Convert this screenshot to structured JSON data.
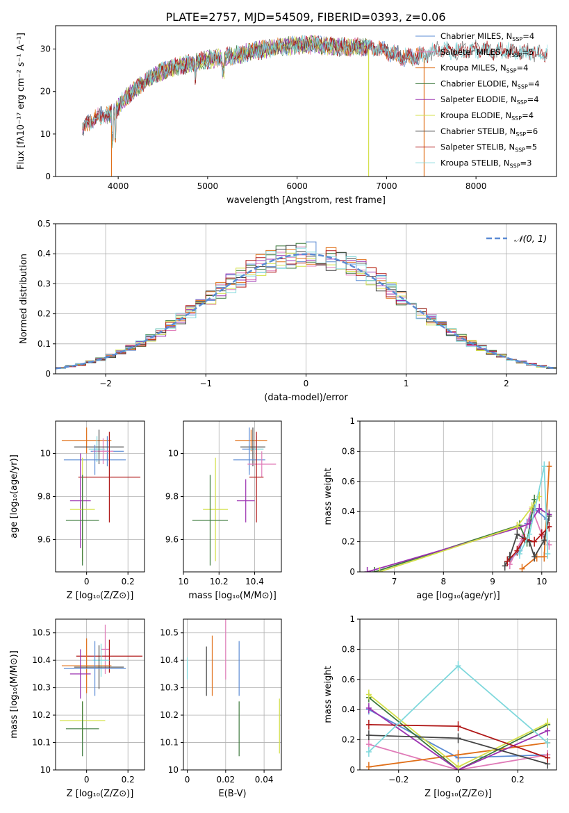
{
  "title": "PLATE=2757, MJD=54509, FIBERID=0393, z=0.06",
  "colors": {
    "chabrier_miles": "#5b8bd4",
    "salpeter_miles": "#e07bb8",
    "kroupa_miles": "#e0701a",
    "chabrier_elodie": "#3d7a3d",
    "salpeter_elodie": "#9b30b0",
    "kroupa_elodie": "#d4e04a",
    "chabrier_stelib": "#444444",
    "salpeter_stelib": "#b01818",
    "kroupa_stelib": "#7fd8dc"
  },
  "chart_data": [
    {
      "type": "line",
      "panel": "spectrum",
      "xlabel": "wavelength [Angstrom, rest frame]",
      "ylabel": "Flux [fλ10⁻¹⁷ erg cm⁻² s⁻¹ A⁻¹]",
      "xlim": [
        3300,
        8900
      ],
      "ylim": [
        0,
        35.5
      ],
      "xticks": [
        4000,
        5000,
        6000,
        7000,
        8000
      ],
      "yticks": [
        0,
        10,
        20,
        30
      ],
      "legend_position": "right",
      "flux_profile": {
        "x": [
          3600,
          3700,
          3850,
          3950,
          4100,
          4300,
          4500,
          4800,
          5000,
          5200,
          5500,
          5800,
          6000,
          6200,
          6500,
          6800,
          7000,
          7200,
          7400,
          7600,
          7800,
          8000,
          8200,
          8400,
          8800
        ],
        "y": [
          11,
          13.5,
          14.5,
          15,
          19,
          22.5,
          25,
          26.5,
          27.5,
          28,
          29.5,
          30.5,
          31,
          31,
          30.5,
          30.5,
          29.5,
          28,
          28.5,
          30,
          29.5,
          30,
          29.5,
          29.5,
          29
        ]
      },
      "series": [
        {
          "name": "Chabrier MILES, Nₛₛₚ=4",
          "label": "Chabrier MILES, N",
          "sub": "SSP",
          "suffix": "=4",
          "color": "#5b8bd4",
          "x_range": [
            3600,
            7400
          ]
        },
        {
          "name": "Salpeter MILES, Nₛₛₚ=5",
          "label": "Salpeter MILES, N",
          "sub": "SSP",
          "suffix": "=5",
          "color": "#e07bb8",
          "x_range": [
            3600,
            7400
          ]
        },
        {
          "name": "Kroupa MILES, Nₛₛₚ=4",
          "label": "Kroupa MILES, N",
          "sub": "SSP",
          "suffix": "=4",
          "color": "#e0701a",
          "x_range": [
            3600,
            7400
          ]
        },
        {
          "name": "Chabrier ELODIE, Nₛₛₚ=4",
          "label": "Chabrier ELODIE, N",
          "sub": "SSP",
          "suffix": "=4",
          "color": "#3d7a3d",
          "x_range": [
            3900,
            6800
          ]
        },
        {
          "name": "Salpeter ELODIE, Nₛₛₚ=4",
          "label": "Salpeter ELODIE, N",
          "sub": "SSP",
          "suffix": "=4",
          "color": "#9b30b0",
          "x_range": [
            3900,
            6800
          ]
        },
        {
          "name": "Kroupa ELODIE, Nₛₛₚ=4",
          "label": "Kroupa ELODIE, N",
          "sub": "SSP",
          "suffix": "=4",
          "color": "#d4e04a",
          "x_range": [
            3900,
            6800
          ]
        },
        {
          "name": "Chabrier STELIB, Nₛₛₚ=6",
          "label": "Chabrier STELIB, N",
          "sub": "SSP",
          "suffix": "=6",
          "color": "#444444",
          "x_range": [
            3600,
            8800
          ]
        },
        {
          "name": "Salpeter STELIB, Nₛₛₚ=5",
          "label": "Salpeter STELIB, N",
          "sub": "SSP",
          "suffix": "=5",
          "color": "#b01818",
          "x_range": [
            3600,
            8800
          ]
        },
        {
          "name": "Kroupa STELIB, Nₛₛₚ=3",
          "label": "Kroupa STELIB, N",
          "sub": "SSP",
          "suffix": "=3",
          "color": "#7fd8dc",
          "x_range": [
            3600,
            8800
          ]
        }
      ]
    },
    {
      "type": "histogram",
      "panel": "residuals",
      "xlabel": "(data-model)/error",
      "ylabel": "Normed distribution",
      "xlim": [
        -2.5,
        2.5
      ],
      "ylim": [
        0,
        0.5
      ],
      "xticks": [
        -2,
        -1,
        0,
        1,
        2
      ],
      "yticks": [
        0.0,
        0.1,
        0.2,
        0.3,
        0.4,
        0.5
      ],
      "grid": true,
      "legend_position": "top-right",
      "reference": {
        "name": "N(0,1)",
        "mean": 0,
        "sigma": 1,
        "color": "#5b8bd4"
      },
      "bin_width": 0.1
    },
    {
      "type": "errorbar",
      "panel": "Z-age",
      "xlabel": "Z [log₁₀(Z/Z⊙)]",
      "ylabel": "age [log₁₀(age/yr)]",
      "xlim": [
        -0.15,
        0.28
      ],
      "ylim": [
        9.45,
        10.15
      ],
      "xticks": [
        0.0,
        0.2
      ],
      "yticks": [
        9.6,
        9.8,
        10.0
      ],
      "points": [
        {
          "x": 0.0,
          "xerr": 0.12,
          "y": 10.06,
          "yerr": 0.06,
          "color": "#e0701a"
        },
        {
          "x": 0.1,
          "xerr": 0.08,
          "y": 10.01,
          "yerr": 0.07,
          "color": "#5b8bd4"
        },
        {
          "x": 0.08,
          "xerr": 0.05,
          "y": 10.01,
          "yerr": 0.06,
          "color": "#e07bb8"
        },
        {
          "x": 0.05,
          "xerr": 0.04,
          "y": 10.02,
          "yerr": 0.06,
          "color": "#7fd8dc"
        },
        {
          "x": 0.06,
          "xerr": 0.12,
          "y": 10.03,
          "yerr": 0.08,
          "color": "#444444"
        },
        {
          "x": 0.04,
          "xerr": 0.15,
          "y": 9.97,
          "yerr": 0.07,
          "color": "#5b8bd4"
        },
        {
          "x": 0.11,
          "xerr": 0.15,
          "y": 9.89,
          "yerr": 0.21,
          "color": "#b01818"
        },
        {
          "x": -0.03,
          "xerr": 0.05,
          "y": 9.78,
          "yerr": 0.22,
          "color": "#9b30b0"
        },
        {
          "x": -0.02,
          "xerr": 0.06,
          "y": 9.74,
          "yerr": 0.24,
          "color": "#d4e04a"
        },
        {
          "x": -0.02,
          "xerr": 0.08,
          "y": 9.69,
          "yerr": 0.21,
          "color": "#3d7a3d"
        }
      ]
    },
    {
      "type": "errorbar",
      "panel": "mass-age",
      "xlabel": "mass [log₁₀(M/M⊙)]",
      "ylabel": "",
      "xlim": [
        10.0,
        10.55
      ],
      "ylim": [
        9.45,
        10.15
      ],
      "xticks": [
        10.0,
        10.2,
        10.4
      ],
      "yticks": [
        9.6,
        9.8,
        10.0
      ],
      "points": [
        {
          "x": 10.38,
          "xerr": 0.09,
          "y": 10.06,
          "yerr": 0.05,
          "color": "#e0701a"
        },
        {
          "x": 10.37,
          "xerr": 0.04,
          "y": 10.02,
          "yerr": 0.1,
          "color": "#5b8bd4"
        },
        {
          "x": 10.41,
          "xerr": 0.04,
          "y": 10.02,
          "yerr": 0.06,
          "color": "#7fd8dc"
        },
        {
          "x": 10.39,
          "xerr": 0.07,
          "y": 10.03,
          "yerr": 0.09,
          "color": "#444444"
        },
        {
          "x": 10.37,
          "xerr": 0.09,
          "y": 9.97,
          "yerr": 0.07,
          "color": "#5b8bd4"
        },
        {
          "x": 10.44,
          "xerr": 0.08,
          "y": 9.95,
          "yerr": 0.06,
          "color": "#e07bb8"
        },
        {
          "x": 10.41,
          "xerr": 0.04,
          "y": 9.89,
          "yerr": 0.21,
          "color": "#b01818"
        },
        {
          "x": 10.35,
          "xerr": 0.05,
          "y": 9.78,
          "yerr": 0.1,
          "color": "#9b30b0"
        },
        {
          "x": 10.18,
          "xerr": 0.07,
          "y": 9.74,
          "yerr": 0.24,
          "color": "#d4e04a"
        },
        {
          "x": 10.15,
          "xerr": 0.1,
          "y": 9.69,
          "yerr": 0.21,
          "color": "#3d7a3d"
        }
      ]
    },
    {
      "type": "line",
      "panel": "age-weight",
      "xlabel": "age [log₁₀(age/yr)]",
      "ylabel": "mass weight",
      "xlim": [
        6.3,
        10.3
      ],
      "ylim": [
        0,
        1.0
      ],
      "xticks": [
        7,
        8,
        9,
        10
      ],
      "yticks": [
        0.0,
        0.2,
        0.4,
        0.6,
        0.8,
        1.0
      ],
      "grid": true,
      "series": [
        {
          "color": "#5b8bd4",
          "x": [
            9.35,
            9.55,
            9.7,
            9.85,
            10.1
          ],
          "y": [
            0.08,
            0.14,
            0.32,
            0.42,
            0.35
          ]
        },
        {
          "color": "#e07bb8",
          "x": [
            9.35,
            9.6,
            9.8,
            10.0,
            10.15
          ],
          "y": [
            0.05,
            0.22,
            0.42,
            0.25,
            0.18
          ]
        },
        {
          "color": "#e0701a",
          "x": [
            9.6,
            9.9,
            10.05,
            10.15
          ],
          "y": [
            0.02,
            0.1,
            0.1,
            0.7
          ]
        },
        {
          "color": "#3d7a3d",
          "x": [
            6.6,
            9.55,
            9.7,
            9.85
          ],
          "y": [
            0.0,
            0.31,
            0.2,
            0.48
          ]
        },
        {
          "color": "#9b30b0",
          "x": [
            6.45,
            9.5,
            9.75,
            9.95,
            10.15
          ],
          "y": [
            0.0,
            0.29,
            0.32,
            0.42,
            0.38
          ]
        },
        {
          "color": "#d4e04a",
          "x": [
            6.7,
            9.5,
            9.8,
            9.95
          ],
          "y": [
            0.0,
            0.3,
            0.43,
            0.5
          ]
        },
        {
          "color": "#444444",
          "x": [
            9.25,
            9.35,
            9.5,
            9.75,
            9.85,
            10.05,
            10.15
          ],
          "y": [
            0.04,
            0.1,
            0.25,
            0.2,
            0.1,
            0.21,
            0.37
          ]
        },
        {
          "color": "#b01818",
          "x": [
            9.3,
            9.5,
            9.65,
            9.85,
            10.0,
            10.15
          ],
          "y": [
            0.07,
            0.14,
            0.22,
            0.2,
            0.25,
            0.3
          ]
        },
        {
          "color": "#7fd8dc",
          "x": [
            9.55,
            9.75,
            10.05,
            10.12
          ],
          "y": [
            0.12,
            0.25,
            0.7,
            0.12
          ]
        }
      ]
    },
    {
      "type": "errorbar",
      "panel": "Z-mass",
      "xlabel": "Z [log₁₀(Z/Z⊙)]",
      "ylabel": "mass [log₁₀(M/M⊙)]",
      "xlim": [
        -0.15,
        0.28
      ],
      "ylim": [
        10.0,
        10.55
      ],
      "xticks": [
        0.0,
        0.2
      ],
      "yticks": [
        10.0,
        10.1,
        10.2,
        10.3,
        10.4,
        10.5
      ],
      "points": [
        {
          "x": 0.09,
          "xerr": 0.02,
          "y": 10.44,
          "yerr": 0.09,
          "color": "#e07bb8"
        },
        {
          "x": 0.11,
          "xerr": 0.16,
          "y": 10.415,
          "yerr": 0.06,
          "color": "#b01818"
        },
        {
          "x": 0.07,
          "xerr": 0.04,
          "y": 10.4,
          "yerr": 0.06,
          "color": "#7fd8dc"
        },
        {
          "x": 0.0,
          "xerr": 0.12,
          "y": 10.38,
          "yerr": 0.1,
          "color": "#e0701a"
        },
        {
          "x": 0.06,
          "xerr": 0.12,
          "y": 10.375,
          "yerr": 0.08,
          "color": "#444444"
        },
        {
          "x": 0.04,
          "xerr": 0.15,
          "y": 10.37,
          "yerr": 0.1,
          "color": "#5b8bd4"
        },
        {
          "x": -0.03,
          "xerr": 0.05,
          "y": 10.35,
          "yerr": 0.09,
          "color": "#9b30b0"
        },
        {
          "x": -0.02,
          "xerr": 0.11,
          "y": 10.18,
          "yerr": 0.07,
          "color": "#d4e04a"
        },
        {
          "x": -0.02,
          "xerr": 0.08,
          "y": 10.15,
          "yerr": 0.1,
          "color": "#3d7a3d"
        }
      ]
    },
    {
      "type": "errorbar",
      "panel": "EBV-mass",
      "xlabel": "E(B-V)",
      "ylabel": "",
      "xlim": [
        -0.002,
        0.049
      ],
      "ylim": [
        10.0,
        10.55
      ],
      "xticks": [
        0.0,
        0.02,
        0.04
      ],
      "yticks": [
        10.0,
        10.1,
        10.2,
        10.3,
        10.4,
        10.5
      ],
      "points": [
        {
          "x": 0.0,
          "y": 10.37,
          "yerr": 0.04,
          "color": "#7fd8dc"
        },
        {
          "x": 0.01,
          "y": 10.36,
          "yerr": 0.09,
          "color": "#444444"
        },
        {
          "x": 0.013,
          "y": 10.38,
          "yerr": 0.11,
          "color": "#e0701a"
        },
        {
          "x": 0.02,
          "y": 10.44,
          "yerr": 0.11,
          "color": "#e07bb8"
        },
        {
          "x": 0.027,
          "y": 10.37,
          "yerr": 0.1,
          "color": "#5b8bd4"
        },
        {
          "x": 0.027,
          "y": 10.15,
          "yerr": 0.1,
          "color": "#3d7a3d"
        },
        {
          "x": 0.048,
          "y": 10.16,
          "yerr": 0.1,
          "color": "#d4e04a"
        }
      ]
    },
    {
      "type": "line",
      "panel": "Z-weight",
      "xlabel": "Z [log₁₀(Z/Z⊙)]",
      "ylabel": "mass weight",
      "xlim": [
        -0.33,
        0.33
      ],
      "ylim": [
        0,
        1.0
      ],
      "xticks": [
        -0.2,
        0.0,
        0.2
      ],
      "yticks": [
        0.0,
        0.2,
        0.4,
        0.6,
        0.8,
        1.0
      ],
      "grid": true,
      "series": [
        {
          "color": "#5b8bd4",
          "x": [
            -0.3,
            0.0,
            0.3
          ],
          "y": [
            0.4,
            0.08,
            0.1
          ]
        },
        {
          "color": "#e07bb8",
          "x": [
            -0.3,
            0.0,
            0.3
          ],
          "y": [
            0.17,
            0.0,
            0.1
          ]
        },
        {
          "color": "#e0701a",
          "x": [
            -0.3,
            0.0,
            0.3
          ],
          "y": [
            0.02,
            0.1,
            0.18
          ]
        },
        {
          "color": "#3d7a3d",
          "x": [
            -0.3,
            0.0,
            0.3
          ],
          "y": [
            0.48,
            0.0,
            0.3
          ]
        },
        {
          "color": "#9b30b0",
          "x": [
            -0.3,
            0.0,
            0.3
          ],
          "y": [
            0.41,
            0.0,
            0.26
          ]
        },
        {
          "color": "#d4e04a",
          "x": [
            -0.3,
            0.0,
            0.3
          ],
          "y": [
            0.5,
            0.02,
            0.31
          ]
        },
        {
          "color": "#444444",
          "x": [
            -0.3,
            0.0,
            0.3
          ],
          "y": [
            0.23,
            0.21,
            0.04
          ]
        },
        {
          "color": "#b01818",
          "x": [
            -0.3,
            0.0,
            0.3
          ],
          "y": [
            0.3,
            0.29,
            0.08
          ]
        },
        {
          "color": "#7fd8dc",
          "x": [
            -0.3,
            0.0,
            0.3
          ],
          "y": [
            0.12,
            0.69,
            0.18
          ]
        }
      ]
    }
  ]
}
